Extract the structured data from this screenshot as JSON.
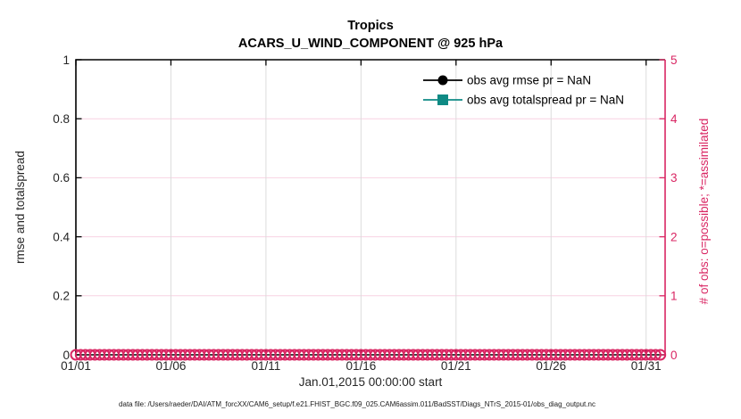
{
  "page": {
    "background": "#ffffff"
  },
  "chart_data": {
    "type": "line",
    "title": "Tropics",
    "subtitle": "ACARS_U_WIND_COMPONENT @ 925 hPa",
    "xlabel": "Jan.01,2015 00:00:00 start",
    "x_axis": {
      "tick_labels": [
        "01/01",
        "01/06",
        "01/11",
        "01/16",
        "01/21",
        "01/26",
        "01/31"
      ],
      "tick_days": [
        1,
        6,
        11,
        16,
        21,
        26,
        31
      ],
      "range_days": [
        1,
        32
      ]
    },
    "left_axis": {
      "label": "rmse and totalspread",
      "range": [
        0,
        1
      ],
      "ticks": [
        "0",
        "0.2",
        "0.4",
        "0.6",
        "0.8",
        "1"
      ],
      "color": "#262626"
    },
    "right_axis": {
      "label": "# of obs: o=possible; *=assimilated",
      "range": [
        0,
        5
      ],
      "ticks": [
        "0",
        "1",
        "2",
        "3",
        "4",
        "5"
      ],
      "color": "#d92663"
    },
    "grid": {
      "horizontal_color": "#f8d2e2",
      "vertical_color": "#dcdcdc",
      "on": true
    },
    "series": [
      {
        "name": "obs avg rmse",
        "value": "NaN",
        "color": "#000000",
        "marker": "filled-circle",
        "points": []
      },
      {
        "name": "obs avg totalspread",
        "value": "NaN",
        "color": "#0f8a84",
        "marker": "filled-square",
        "points": []
      },
      {
        "name": "# of obs possible",
        "color": "#d92663",
        "marker": "open-circle",
        "x_start_day": 1,
        "x_end_day": 31.75,
        "x_step_days": 0.25,
        "value_constant": 0
      }
    ],
    "legend": {
      "position": "top-right-inside",
      "entries": [
        {
          "label": "obs avg rmse pr = NaN",
          "color": "#000000",
          "marker": "filled-circle"
        },
        {
          "label": "obs avg totalspread pr = NaN",
          "color": "#0f8a84",
          "marker": "filled-square"
        }
      ]
    }
  },
  "footer": {
    "text": "data file: /Users/raeder/DAI/ATM_forcXX/CAM6_setup/f.e21.FHIST_BGC.f09_025.CAM6assim.011/BadSST/Diags_NTrS_2015-01/obs_diag_output.nc"
  }
}
